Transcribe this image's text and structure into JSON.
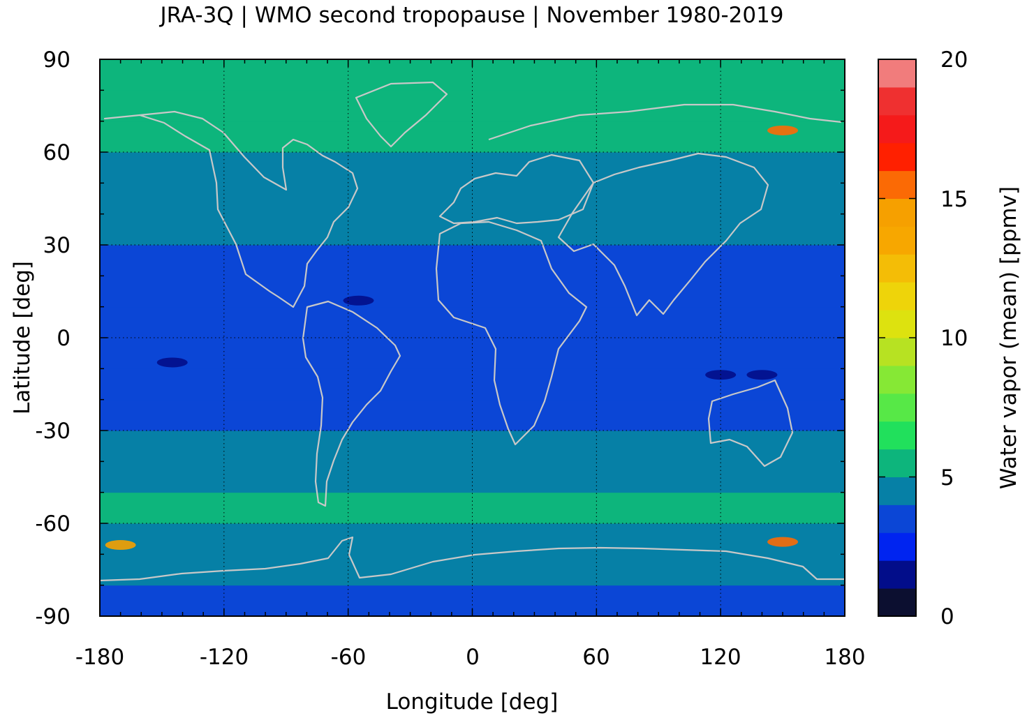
{
  "chart_data": {
    "type": "heatmap",
    "title": "JRA-3Q | WMO second tropopause | November 1980-2019",
    "xlabel": "Longitude [deg]",
    "ylabel": "Latitude [deg]",
    "xlim": [
      -180,
      180
    ],
    "ylim": [
      -90,
      90
    ],
    "xticks": [
      -180,
      -120,
      -60,
      0,
      60,
      120,
      180
    ],
    "yticks": [
      90,
      60,
      30,
      0,
      -30,
      -60,
      -90
    ],
    "xtick_labels": [
      "-180",
      "-120",
      "-60",
      "0",
      "60",
      "120",
      "180"
    ],
    "ytick_labels": [
      "90",
      "60",
      "30",
      "0",
      "-30",
      "-60",
      "-90"
    ],
    "grid": true,
    "coastlines": true,
    "colorbar": {
      "label": "Water vapor (mean) [ppmv]",
      "range": [
        0,
        20
      ],
      "step": 1,
      "ticks": [
        0,
        5,
        10,
        15,
        20
      ],
      "tick_labels": [
        "0",
        "5",
        "10",
        "15",
        "20"
      ],
      "colors": [
        "#0c0f30",
        "#020d8a",
        "#0024f0",
        "#0b46d6",
        "#0680a6",
        "#0db57c",
        "#21e05c",
        "#57e847",
        "#86e835",
        "#b7e222",
        "#dde20f",
        "#eed40a",
        "#f4bd06",
        "#f7a700",
        "#f6a000",
        "#fb6a05",
        "#ff2000",
        "#f51a1a",
        "#ef3030",
        "#f17c7c",
        "#ffcfcf"
      ]
    },
    "zonal_mean_profile": {
      "lat": [
        -90,
        -80,
        -70,
        -60,
        -50,
        -40,
        -30,
        -20,
        -10,
        0,
        10,
        20,
        30,
        40,
        50,
        60,
        70,
        80,
        90
      ],
      "value": [
        3.5,
        3.6,
        4.5,
        5.3,
        4.9,
        4.5,
        4.2,
        3.6,
        3.4,
        3.5,
        3.5,
        3.6,
        4.3,
        4.5,
        4.6,
        5.1,
        5.6,
        5.5,
        5.4
      ]
    },
    "features": [
      {
        "lon": 150,
        "lat": -66,
        "value": 15
      },
      {
        "lon": -170,
        "lat": -67,
        "value": 14
      },
      {
        "lon": 150,
        "lat": 67,
        "value": 15
      },
      {
        "lon": 140,
        "lat": -12,
        "value": 1
      },
      {
        "lon": 120,
        "lat": -12,
        "value": 1
      },
      {
        "lon": -55,
        "lat": 12,
        "value": 1.5
      },
      {
        "lon": -145,
        "lat": -8,
        "value": 1.5
      }
    ]
  }
}
